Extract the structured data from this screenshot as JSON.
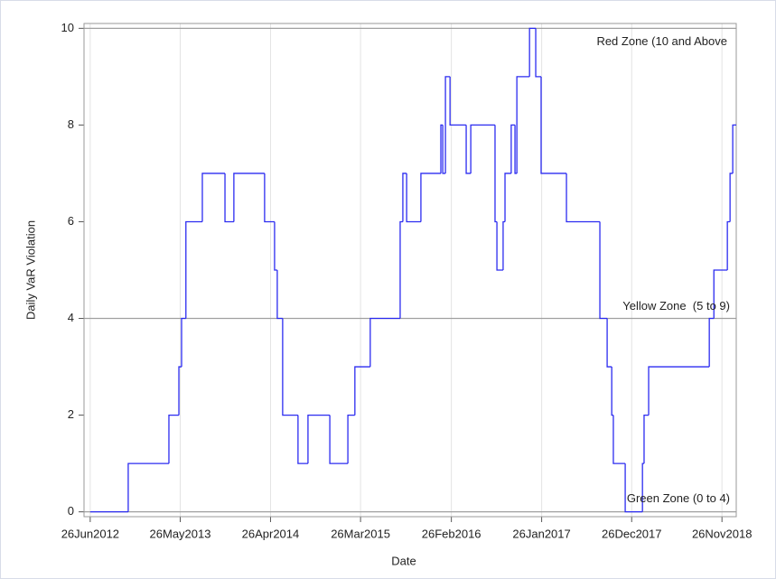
{
  "chart_data": {
    "type": "step",
    "x_label": "Date",
    "y_label": "Daily VaR Violation",
    "x": [
      "2012-06-26",
      "2012-11-14",
      "2013-04-14",
      "2013-05-21",
      "2013-05-31",
      "2013-06-16",
      "2013-08-16",
      "2013-11-08",
      "2013-12-11",
      "2014-04-04",
      "2014-05-11",
      "2014-05-21",
      "2014-06-10",
      "2014-08-06",
      "2014-09-12",
      "2014-12-02",
      "2015-02-07",
      "2015-03-05",
      "2015-05-01",
      "2015-08-20",
      "2015-08-30",
      "2015-09-13",
      "2015-11-05",
      "2016-01-18",
      "2016-01-25",
      "2016-02-04",
      "2016-02-21",
      "2016-04-21",
      "2016-05-08",
      "2016-08-06",
      "2016-08-13",
      "2016-09-05",
      "2016-09-12",
      "2016-10-05",
      "2016-10-19",
      "2016-10-26",
      "2016-12-12",
      "2017-01-04",
      "2017-01-24",
      "2017-04-28",
      "2017-08-30",
      "2017-09-26",
      "2017-10-13",
      "2017-10-19",
      "2017-12-02",
      "2018-02-04",
      "2018-02-10",
      "2018-02-27",
      "2018-10-10",
      "2018-10-27",
      "2018-12-16",
      "2018-12-26",
      "2019-01-05",
      "2019-01-18"
    ],
    "series": [
      {
        "name": "Daily VaR Violation",
        "color": "#2b2bf0",
        "values": [
          0,
          1,
          2,
          3,
          4,
          6,
          7,
          6,
          7,
          6,
          5,
          4,
          2,
          1,
          2,
          1,
          2,
          3,
          4,
          6,
          7,
          6,
          7,
          8,
          7,
          9,
          8,
          7,
          8,
          6,
          5,
          6,
          7,
          8,
          7,
          9,
          10,
          9,
          7,
          6,
          4,
          3,
          2,
          1,
          0,
          1,
          2,
          3,
          4,
          5,
          6,
          7,
          8,
          8
        ]
      }
    ],
    "xlim": [
      "2012-06-03",
      "2019-01-18"
    ],
    "xticks": [
      {
        "value": "2012-06-26",
        "label": "26Jun2012"
      },
      {
        "value": "2013-05-26",
        "label": "26May2013"
      },
      {
        "value": "2014-04-26",
        "label": "26Apr2014"
      },
      {
        "value": "2015-03-26",
        "label": "26Mar2015"
      },
      {
        "value": "2016-02-26",
        "label": "26Feb2016"
      },
      {
        "value": "2017-01-26",
        "label": "26Jan2017"
      },
      {
        "value": "2017-12-26",
        "label": "26Dec2017"
      },
      {
        "value": "2018-11-26",
        "label": "26Nov2018"
      }
    ],
    "ylim": [
      -0.1,
      10.1
    ],
    "yticks": [
      0,
      2,
      4,
      6,
      8,
      10
    ],
    "xgrid": true,
    "reference_lines": [
      {
        "value": 10,
        "label": "Red Zone (10 and Above"
      },
      {
        "value": 4,
        "label": "Yellow Zone  (5 to 9)"
      },
      {
        "value": 0,
        "label": "Green Zone (0 to 4)"
      }
    ]
  }
}
